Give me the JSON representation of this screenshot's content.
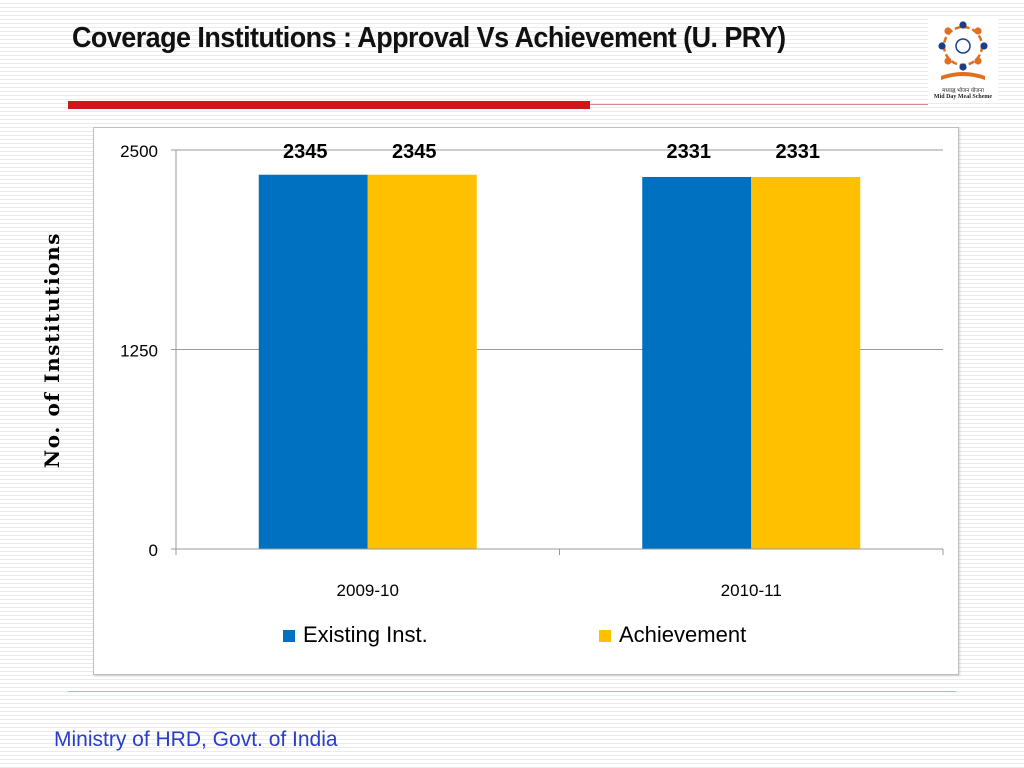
{
  "slide": {
    "title": "Coverage Institutions : Approval Vs Achievement (U. PRY)",
    "footer": "Ministry of HRD, Govt. of India"
  },
  "logo": {
    "hindi_text": "मध्याह्न भोजन योजना",
    "english_text": "Mid Day Meal Scheme"
  },
  "colors": {
    "title_rule": "#d0161c",
    "footer_text": "#2a3ccc",
    "series_existing": "#0070c0",
    "series_achievement": "#ffc000"
  },
  "chart_data": {
    "type": "bar",
    "title": "",
    "xlabel": "",
    "ylabel": "No. of Institutions",
    "categories": [
      "2009-10",
      "2010-11"
    ],
    "series": [
      {
        "name": "Existing Inst.",
        "values": [
          2345,
          2331
        ],
        "color": "#0070c0"
      },
      {
        "name": "Achievement",
        "values": [
          2345,
          2331
        ],
        "color": "#ffc000"
      }
    ],
    "ylim": [
      0,
      2500
    ],
    "yticks": [
      0,
      1250,
      2500
    ],
    "data_labels": true,
    "grid": true,
    "legend_position": "bottom"
  }
}
